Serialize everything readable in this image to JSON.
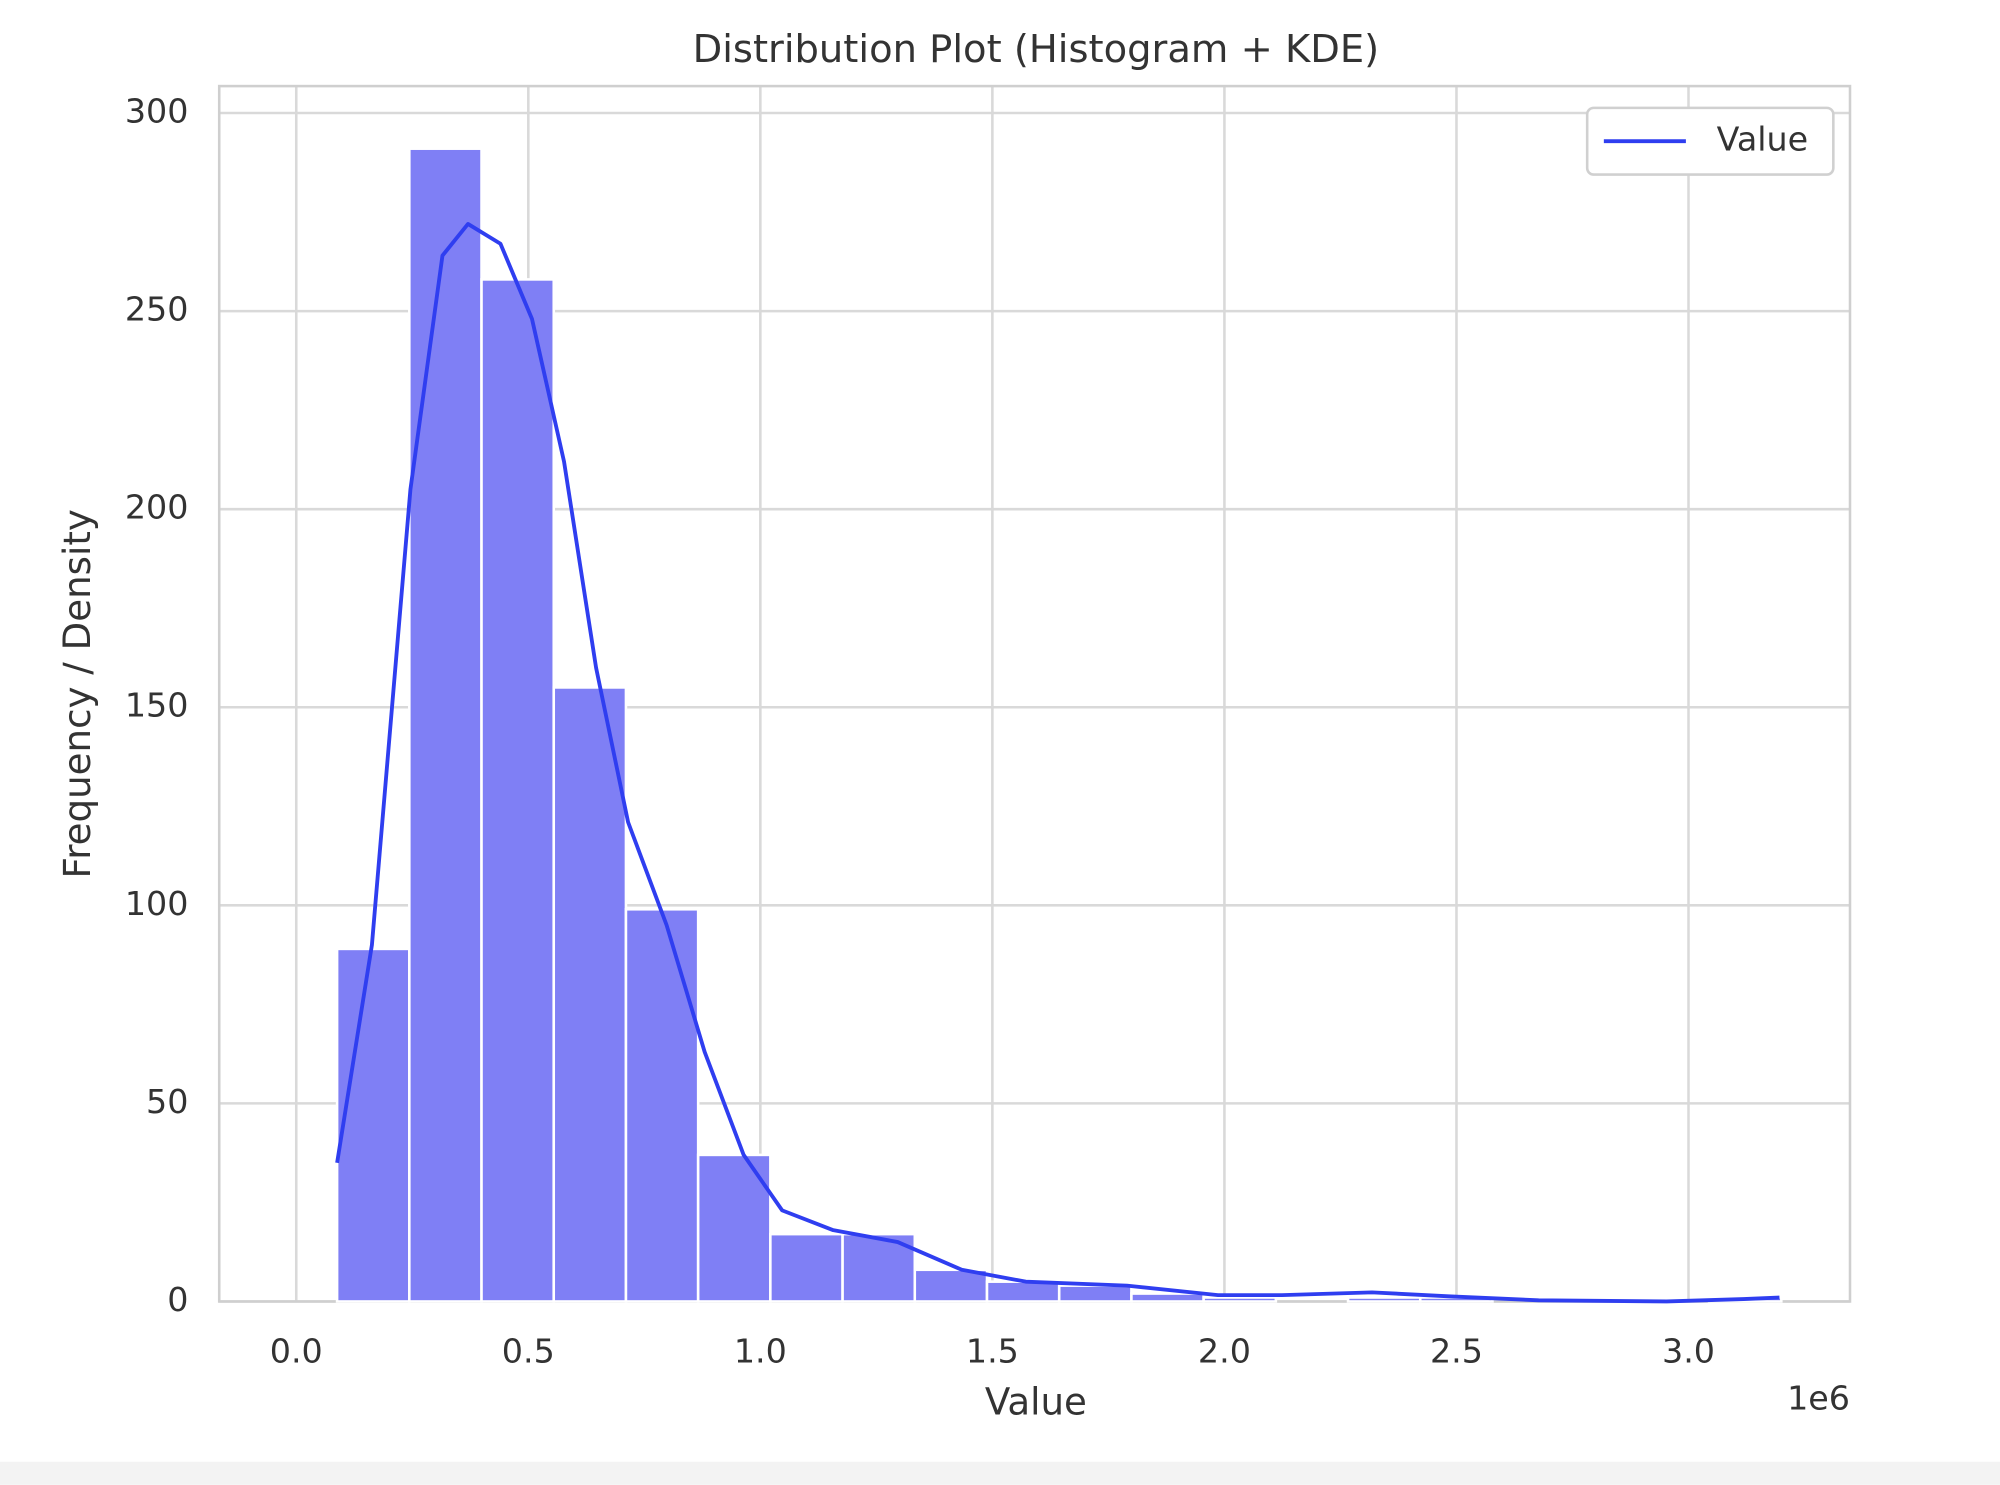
{
  "chart_data": {
    "type": "histogram",
    "title": "Distribution Plot (Histogram + KDE)",
    "x_label": "Value",
    "y_label": "Frequency / Density",
    "x_offset_label": "1e6",
    "bins": [
      0.088,
      0.2436,
      0.3992,
      0.5548,
      0.7104,
      0.866,
      1.0216,
      1.1772,
      1.3328,
      1.4884,
      1.644,
      1.7996,
      1.9552,
      2.1108,
      2.2664,
      2.422,
      2.5776,
      2.7332,
      2.8888,
      3.0444,
      3.2
    ],
    "values": [
      89,
      291,
      258,
      155,
      99,
      37,
      17,
      17,
      8,
      5,
      4,
      2,
      1,
      0,
      1,
      1,
      0,
      0,
      0,
      1
    ],
    "color": "#7f7ff5",
    "kde": {
      "name": "Value",
      "color": "#2f3ef0",
      "x": [
        0.088,
        0.163,
        0.246,
        0.315,
        0.37,
        0.44,
        0.508,
        0.577,
        0.646,
        0.715,
        0.798,
        0.88,
        0.964,
        1.047,
        1.157,
        1.296,
        1.434,
        1.572,
        1.79,
        1.986,
        2.124,
        2.318,
        2.483,
        2.677,
        2.953,
        3.119,
        3.196
      ],
      "values": [
        35,
        90,
        205,
        264,
        272,
        267,
        248,
        212,
        160,
        121,
        95,
        63,
        37,
        23,
        18,
        15,
        8,
        5,
        4,
        1.6,
        1.6,
        2.3,
        1.3,
        0.3,
        0,
        0.6,
        1
      ]
    },
    "xlim": [
      -0.166,
      3.348
    ],
    "ylim": [
      0,
      306.8
    ],
    "xticks": [
      {
        "value": 0,
        "label": "0.0"
      },
      0.5,
      {
        "value": 1,
        "label": "1.0"
      },
      1.5,
      {
        "value": 2,
        "label": "2.0"
      },
      2.5,
      {
        "value": 3,
        "label": "3.0"
      }
    ],
    "yticks": [
      0,
      50,
      100,
      150,
      200,
      250,
      300
    ],
    "grid": true,
    "legend": "upper right"
  }
}
